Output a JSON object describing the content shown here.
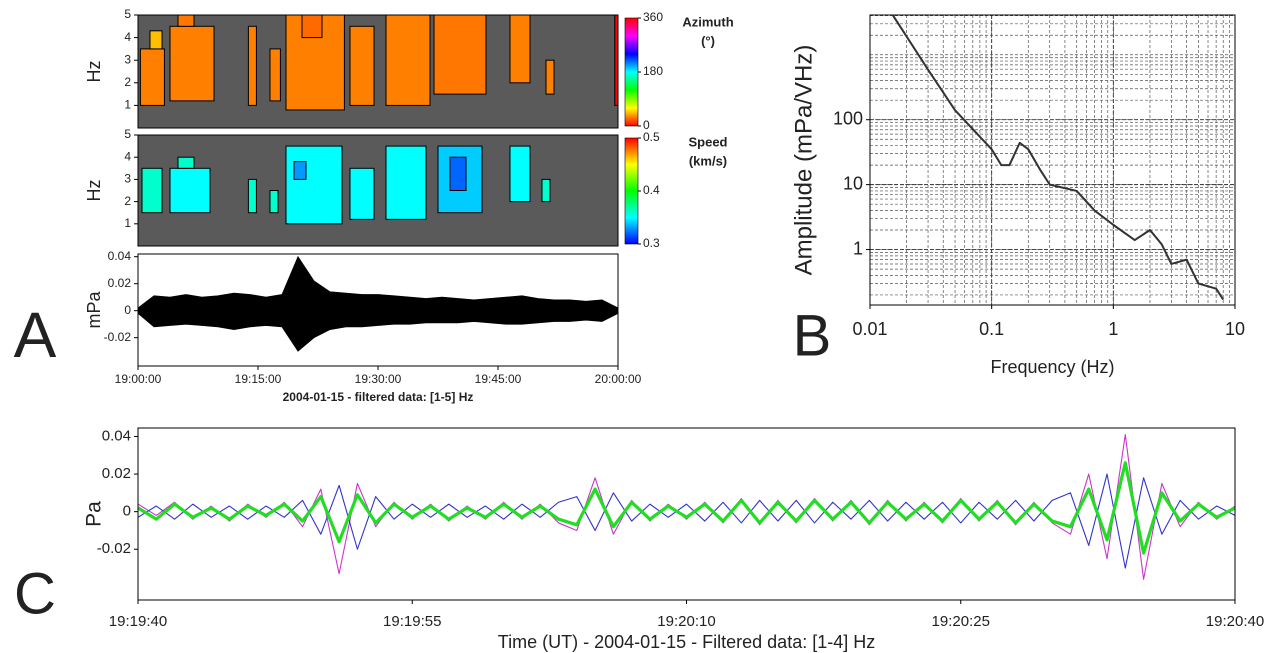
{
  "chart_data": [
    {
      "type": "heatmap",
      "ylabel": "Hz",
      "xlim": [
        0,
        60
      ],
      "ylim": [
        0,
        5
      ],
      "yticks": [
        1,
        2,
        3,
        4,
        5
      ],
      "background": "#5a5a5a",
      "colormap": "hsv",
      "clim": [
        0,
        360
      ],
      "cticks": [
        0,
        180,
        360
      ],
      "colorbar_title": "Azimuth",
      "colorbar_unit": "(°)",
      "cells": [
        [
          0.3,
          3.3,
          1,
          3.5,
          30
        ],
        [
          1.5,
          3,
          3.5,
          4.3,
          45
        ],
        [
          4,
          9.5,
          1.2,
          4.5,
          30
        ],
        [
          5,
          7,
          4.5,
          5,
          28
        ],
        [
          13.8,
          14.8,
          1,
          4.5,
          30
        ],
        [
          16.5,
          17.8,
          1.2,
          3.5,
          30
        ],
        [
          18.5,
          25.8,
          0.8,
          5,
          30
        ],
        [
          20.5,
          23,
          4,
          5,
          25
        ],
        [
          26.5,
          29.5,
          1,
          4.5,
          30
        ],
        [
          31,
          36.5,
          1,
          5,
          30
        ],
        [
          37,
          43.5,
          1.5,
          5,
          28
        ],
        [
          46.5,
          49,
          2,
          5,
          30
        ],
        [
          51,
          52,
          1.5,
          3,
          30
        ],
        [
          59.6,
          60,
          1,
          5,
          0
        ]
      ]
    },
    {
      "type": "heatmap",
      "ylabel": "Hz",
      "xlim": [
        0,
        60
      ],
      "ylim": [
        0,
        5
      ],
      "yticks": [
        1,
        2,
        3,
        4,
        5
      ],
      "background": "#5a5a5a",
      "colormap": "jet",
      "clim": [
        0.3,
        0.5
      ],
      "cticks": [
        0.3,
        0.4,
        0.5
      ],
      "colorbar_title": "Speed",
      "colorbar_unit": "(km/s)",
      "cells": [
        [
          0.5,
          3,
          1.5,
          3.5,
          0.36
        ],
        [
          4,
          9,
          1.5,
          3.5,
          0.35
        ],
        [
          5,
          7,
          3.5,
          4,
          0.36
        ],
        [
          13.8,
          14.8,
          1.5,
          3,
          0.36
        ],
        [
          16.5,
          17.5,
          1.5,
          2.5,
          0.36
        ],
        [
          18.5,
          25.5,
          1,
          4.5,
          0.35
        ],
        [
          19.5,
          21,
          3,
          3.8,
          0.33
        ],
        [
          26.5,
          29.5,
          1.2,
          3.5,
          0.35
        ],
        [
          31,
          36,
          1.2,
          4.5,
          0.35
        ],
        [
          37.5,
          43,
          1.5,
          4.5,
          0.34
        ],
        [
          39,
          41,
          2.5,
          4,
          0.32
        ],
        [
          46.5,
          49,
          2,
          4.5,
          0.35
        ],
        [
          50.5,
          51.5,
          2,
          3,
          0.36
        ]
      ]
    },
    {
      "type": "area",
      "panel_label": "A",
      "ylabel": "mPa",
      "xlabel": "2004-01-15 - filtered data: [1-5] Hz",
      "xlim": [
        0,
        60
      ],
      "ylim": [
        -0.041,
        0.042
      ],
      "yticks": [
        -0.02,
        0,
        0.02,
        0.04
      ],
      "xticks": [
        {
          "value": 0,
          "label": "19:00:00"
        },
        {
          "value": 15,
          "label": "19:15:00"
        },
        {
          "value": 30,
          "label": "19:30:00"
        },
        {
          "value": 45,
          "label": "19:45:00"
        },
        {
          "value": 60,
          "label": "20:00:00"
        }
      ],
      "color": "#000000",
      "x": [
        0,
        2,
        4,
        6,
        8,
        10,
        12,
        14,
        16,
        18,
        20,
        22,
        24,
        26,
        28,
        30,
        32,
        34,
        36,
        38,
        40,
        42,
        44,
        46,
        48,
        50,
        52,
        54,
        56,
        58,
        60
      ],
      "upper": [
        0.002,
        0.011,
        0.01,
        0.012,
        0.01,
        0.011,
        0.013,
        0.012,
        0.01,
        0.012,
        0.04,
        0.022,
        0.014,
        0.013,
        0.012,
        0.012,
        0.011,
        0.01,
        0.009,
        0.01,
        0.009,
        0.008,
        0.009,
        0.01,
        0.011,
        0.009,
        0.008,
        0.008,
        0.007,
        0.008,
        0.002
      ],
      "lower": [
        -0.002,
        -0.012,
        -0.011,
        -0.01,
        -0.011,
        -0.012,
        -0.014,
        -0.012,
        -0.011,
        -0.012,
        -0.03,
        -0.02,
        -0.014,
        -0.012,
        -0.012,
        -0.011,
        -0.01,
        -0.01,
        -0.009,
        -0.009,
        -0.009,
        -0.008,
        -0.009,
        -0.01,
        -0.01,
        -0.009,
        -0.008,
        -0.008,
        -0.007,
        -0.008,
        -0.002
      ]
    },
    {
      "type": "line",
      "panel_label": "B",
      "xlabel": "Frequency (Hz)",
      "ylabel": "Amplitude (mPa/VHz)",
      "log_x": true,
      "log_y": true,
      "grid": true,
      "xlim": [
        0.01,
        10
      ],
      "ylim": [
        0.14,
        4100
      ],
      "xticks": [
        0.01,
        0.1,
        1,
        10
      ],
      "yticks": [
        1,
        10,
        100
      ],
      "x": [
        0.0155,
        0.03,
        0.05,
        0.1,
        0.12,
        0.14,
        0.17,
        0.2,
        0.25,
        0.3,
        0.5,
        0.7,
        1,
        1.5,
        2,
        2.5,
        3,
        4,
        5,
        7,
        8
      ],
      "series": [
        {
          "color": "#333333",
          "values": [
            4000,
            590,
            140,
            35,
            20,
            20,
            44,
            35,
            17,
            10,
            8,
            4,
            2.4,
            1.4,
            2,
            1.2,
            0.6,
            0.7,
            0.3,
            0.25,
            0.17
          ]
        }
      ]
    },
    {
      "type": "line",
      "panel_label": "C",
      "ylabel": "Pa",
      "xlabel": "Time (UT) - 2004-01-15 - Filtered data: [1-4] Hz",
      "xlim": [
        0,
        60
      ],
      "ylim": [
        -0.047,
        0.0445
      ],
      "yticks": [
        -0.02,
        0,
        0.02,
        0.04
      ],
      "xticks": [
        {
          "value": 0,
          "label": "19:19:40"
        },
        {
          "value": 15,
          "label": "19:19:55"
        },
        {
          "value": 30,
          "label": "19:20:10"
        },
        {
          "value": 45,
          "label": "19:20:25"
        },
        {
          "value": 60,
          "label": "19:20:40"
        }
      ],
      "x": [
        0,
        1,
        2,
        3,
        4,
        5,
        6,
        7,
        8,
        9,
        10,
        11,
        12,
        13,
        14,
        15,
        16,
        17,
        18,
        19,
        20,
        21,
        22,
        23,
        24,
        25,
        26,
        27,
        28,
        29,
        30,
        31,
        32,
        33,
        34,
        35,
        36,
        37,
        38,
        39,
        40,
        41,
        42,
        43,
        44,
        45,
        46,
        47,
        48,
        49,
        50,
        51,
        52,
        53,
        54,
        55,
        56,
        57,
        58,
        59,
        60
      ],
      "series": [
        {
          "color": "#cc33cc",
          "values": [
            0.004,
            -0.002,
            0.005,
            -0.004,
            0.003,
            -0.005,
            0.004,
            -0.003,
            0.005,
            -0.008,
            0.012,
            -0.033,
            0.015,
            -0.008,
            0.005,
            -0.004,
            0.004,
            -0.005,
            0.003,
            -0.004,
            0.005,
            -0.004,
            0.004,
            -0.006,
            -0.01,
            0.018,
            -0.012,
            0.006,
            -0.005,
            0.004,
            -0.004,
            0.005,
            -0.006,
            0.007,
            -0.007,
            0.006,
            -0.006,
            0.007,
            -0.005,
            0.006,
            -0.007,
            0.006,
            -0.005,
            0.005,
            -0.006,
            0.007,
            -0.005,
            0.006,
            -0.007,
            0.005,
            -0.006,
            -0.012,
            0.02,
            -0.025,
            0.041,
            -0.036,
            0.015,
            -0.008,
            0.005,
            -0.004,
            0.003
          ]
        },
        {
          "color": "#3333cc",
          "values": [
            -0.003,
            0.003,
            -0.004,
            0.004,
            -0.003,
            0.003,
            -0.004,
            0.003,
            -0.003,
            0.006,
            -0.012,
            0.014,
            -0.02,
            0.008,
            -0.004,
            0.004,
            -0.003,
            0.004,
            -0.003,
            0.003,
            -0.004,
            0.004,
            -0.003,
            0.005,
            0.008,
            -0.01,
            0.01,
            -0.005,
            0.004,
            -0.003,
            0.004,
            -0.005,
            0.005,
            -0.006,
            0.006,
            -0.005,
            0.006,
            -0.006,
            0.005,
            -0.004,
            0.006,
            -0.005,
            0.005,
            -0.004,
            0.005,
            -0.006,
            0.005,
            -0.004,
            0.006,
            -0.005,
            0.006,
            0.01,
            -0.018,
            0.02,
            -0.03,
            0.018,
            -0.012,
            0.006,
            -0.004,
            0.003,
            -0.002
          ]
        },
        {
          "color": "#22dd22",
          "values": [
            0.002,
            -0.004,
            0.004,
            -0.003,
            0.002,
            -0.004,
            0.003,
            -0.002,
            0.004,
            -0.005,
            0.008,
            -0.016,
            0.009,
            -0.006,
            0.004,
            -0.003,
            0.003,
            -0.004,
            0.002,
            -0.003,
            0.004,
            -0.003,
            0.003,
            -0.004,
            -0.007,
            0.012,
            -0.008,
            0.005,
            -0.004,
            0.003,
            -0.003,
            0.004,
            -0.005,
            0.006,
            -0.006,
            0.005,
            -0.005,
            0.006,
            -0.004,
            0.005,
            -0.006,
            0.005,
            -0.004,
            0.004,
            -0.005,
            0.006,
            -0.004,
            0.005,
            -0.006,
            0.004,
            -0.005,
            -0.008,
            0.012,
            -0.015,
            0.026,
            -0.022,
            0.01,
            -0.005,
            0.004,
            -0.003,
            0.002
          ]
        }
      ]
    }
  ]
}
